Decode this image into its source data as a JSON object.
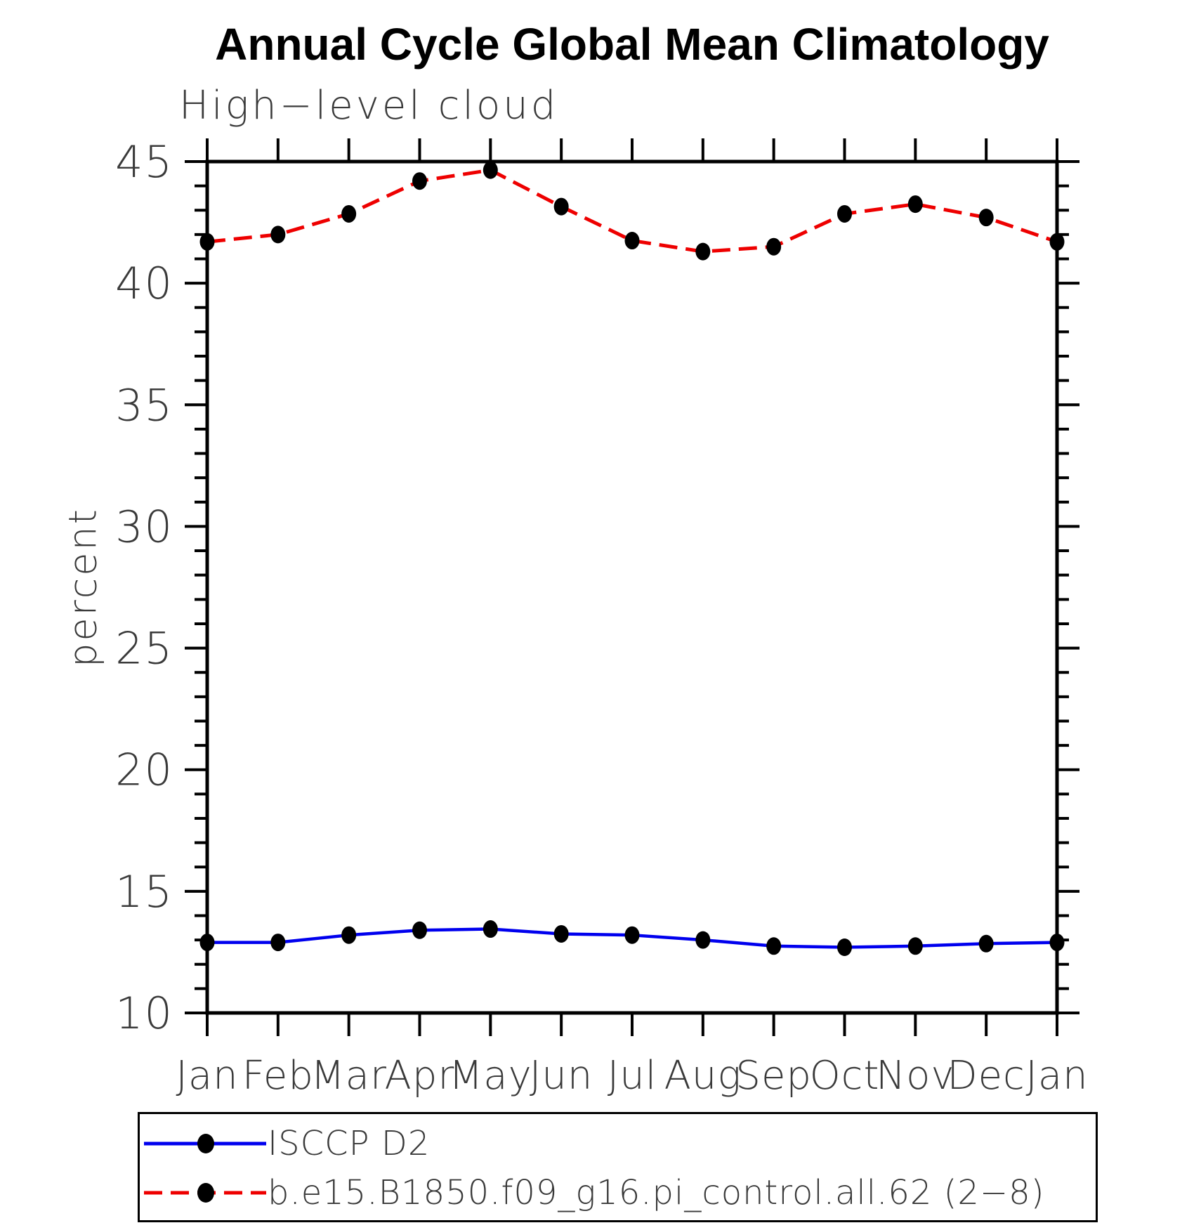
{
  "title": "Annual Cycle Global Mean Climatology",
  "subtitle": "High−level cloud",
  "y_axis_title": "percent",
  "colors": {
    "obs_line": "#0000ee",
    "model_line": "#ee0000",
    "marker": "#000000",
    "axis": "#000000",
    "text": "#3a3a3a"
  },
  "legend": {
    "items": [
      {
        "label": "ISCCP D2",
        "color": "#0000ee",
        "dasharray": "none"
      },
      {
        "label": "b.e15.B1850.f09_g16.pi_control.all.62 (2−8)",
        "color": "#ee0000",
        "dasharray": "26 12"
      }
    ]
  },
  "chart_data": {
    "type": "line",
    "title": "Annual Cycle Global Mean Climatology",
    "subtitle": "High−level cloud",
    "ylabel": "percent",
    "xlabel": "",
    "x_categories": [
      "Jan",
      "Feb",
      "Mar",
      "Apr",
      "May",
      "Jun",
      "Jul",
      "Aug",
      "Sep",
      "Oct",
      "Nov",
      "Dec",
      "Jan"
    ],
    "ylim": [
      10,
      45
    ],
    "yticks": [
      10,
      15,
      20,
      25,
      30,
      35,
      40,
      45
    ],
    "y_minor_tick_interval": 1,
    "grid": false,
    "legend_position": "bottom-box",
    "series": [
      {
        "name": "ISCCP D2",
        "color": "#0000ee",
        "line_style": "solid",
        "marker": "filled-black-circle",
        "values": [
          12.9,
          12.9,
          13.2,
          13.4,
          13.45,
          13.25,
          13.2,
          13.0,
          12.75,
          12.7,
          12.75,
          12.85,
          12.9
        ]
      },
      {
        "name": "b.e15.B1850.f09_g16.pi_control.all.62 (2−8)",
        "color": "#ee0000",
        "line_style": "dashed",
        "marker": "filled-black-circle",
        "values": [
          41.7,
          42.0,
          42.85,
          44.2,
          44.65,
          43.15,
          41.75,
          41.3,
          41.5,
          42.85,
          43.25,
          42.7,
          41.7
        ]
      }
    ]
  }
}
